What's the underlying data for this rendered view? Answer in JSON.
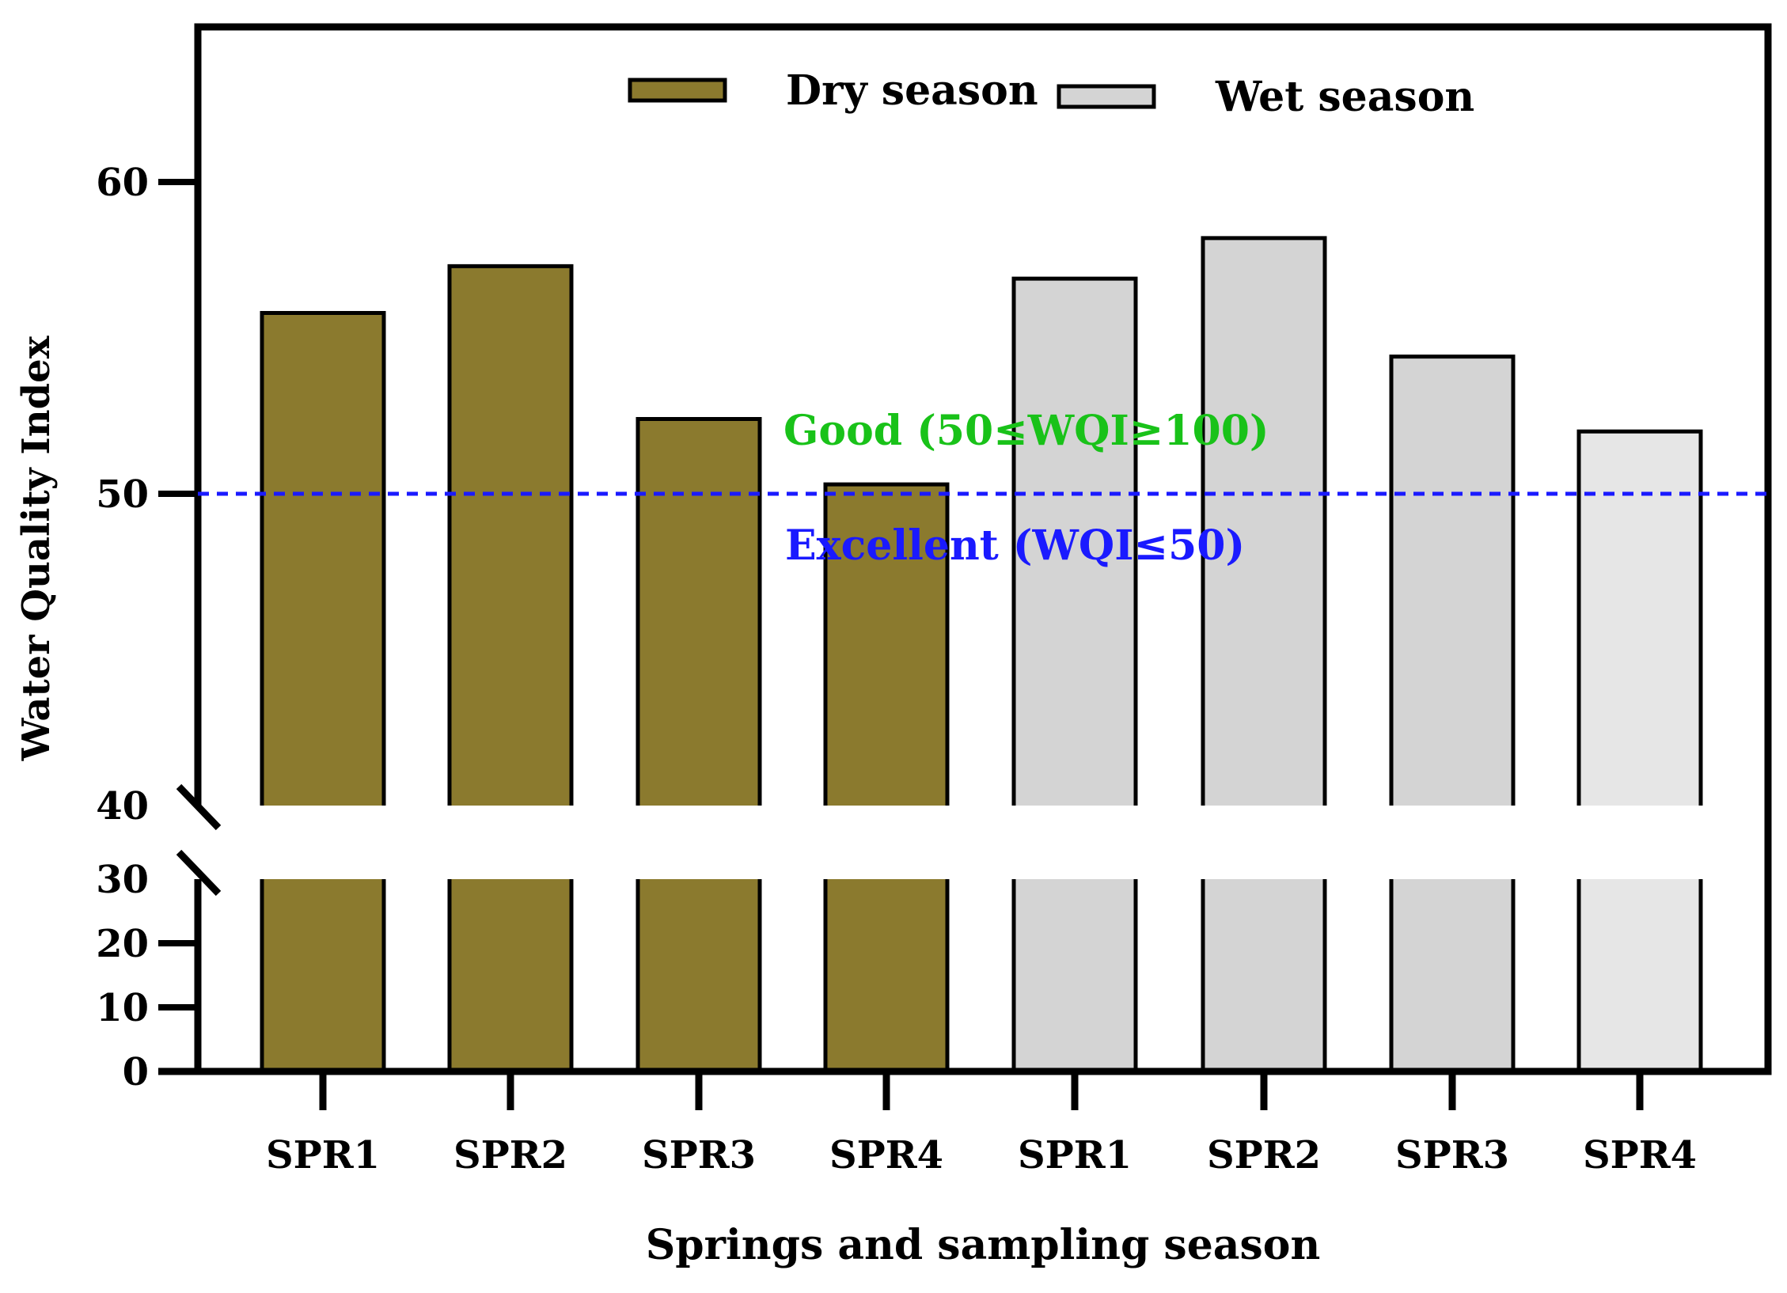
{
  "chart_data": {
    "type": "bar",
    "title": "",
    "xlabel": "Springs and sampling season",
    "ylabel": "Water Quality Index",
    "categories": [
      "SPR1",
      "SPR2",
      "SPR3",
      "SPR4",
      "SPR1",
      "SPR2",
      "SPR3",
      "SPR4"
    ],
    "series": [
      {
        "name": "Dry season",
        "color": "#8b7a2e",
        "values": [
          55.8,
          57.3,
          52.4,
          50.3,
          null,
          null,
          null,
          null
        ]
      },
      {
        "name": "Wet season",
        "color": "#d4d4d4",
        "values": [
          null,
          null,
          null,
          null,
          56.9,
          58.2,
          54.4,
          52.0
        ]
      }
    ],
    "last_bar_color": "#e6e6e6",
    "axis": {
      "lower_segment": {
        "ylim": [
          0,
          30
        ],
        "ticks": [
          "0",
          "10",
          "20",
          "30"
        ]
      },
      "upper_segment": {
        "ylim": [
          40,
          65
        ],
        "ticks": [
          "40",
          "50",
          "60"
        ]
      },
      "break_between": [
        30,
        40
      ]
    },
    "reference_line": {
      "value": 50,
      "color": "#1a1aff",
      "style": "dashed"
    },
    "annotations": [
      {
        "text": "Good (50≤WQI≥100)",
        "color": "#19c219",
        "anchor_y": 52.0
      },
      {
        "text": "Excellent (WQI≤50)",
        "color": "#1a1aff",
        "anchor_y": 48.5
      }
    ],
    "legend": {
      "placement": "top-center",
      "entries": [
        "Dry season",
        "Wet season"
      ]
    },
    "grid": false
  }
}
